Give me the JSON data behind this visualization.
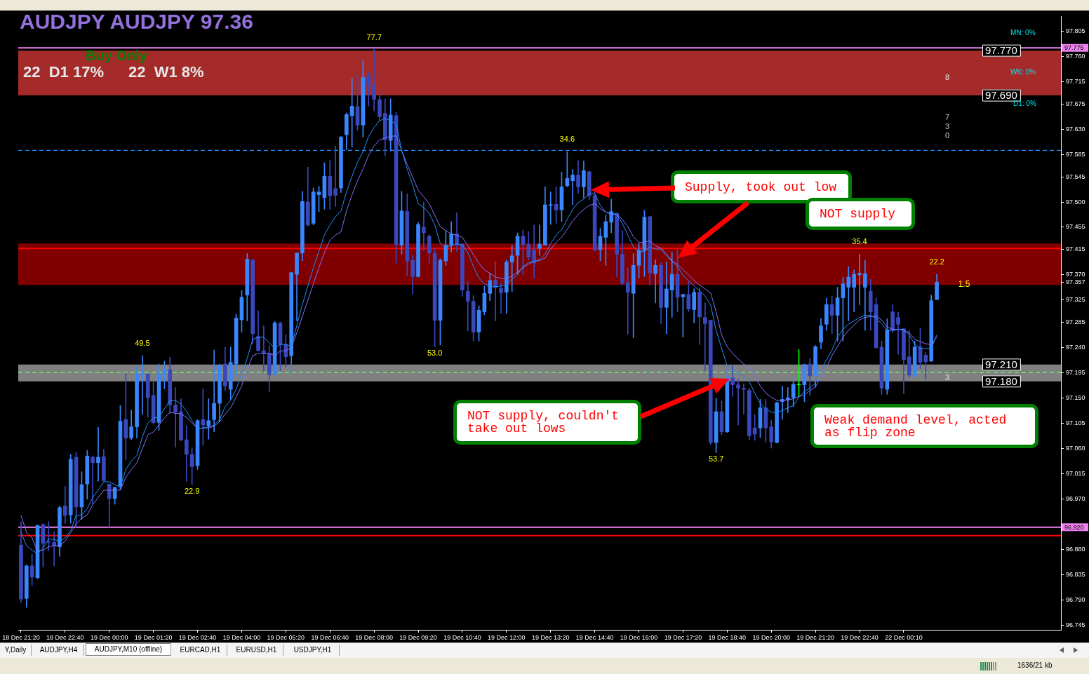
{
  "chart_data": {
    "type": "candlestick",
    "title": "AUDJPY AUDJPY 97.36",
    "subtitle": "Buy Only",
    "categories": [
      "18 Dec 21:20",
      null,
      null,
      null,
      null,
      null,
      null,
      null,
      "18 Dec 22:40",
      null,
      null,
      null,
      null,
      null,
      null,
      null,
      "19 Dec 00:00",
      null,
      null,
      null,
      null,
      null,
      null,
      null,
      "19 Dec 01:20",
      null,
      null,
      null,
      null,
      null,
      null,
      null,
      "19 Dec 02:40",
      null,
      null,
      null,
      null,
      null,
      null,
      null,
      "19 Dec 04:00",
      null,
      null,
      null,
      null,
      null,
      null,
      null,
      "19 Dec 05:20",
      null,
      null,
      null,
      null,
      null,
      null,
      null,
      "19 Dec 06:40",
      null,
      null,
      null,
      null,
      null,
      null,
      null,
      "19 Dec 08:00",
      null,
      null,
      null,
      null,
      null,
      null,
      null,
      "19 Dec 09:20",
      null,
      null,
      null,
      null,
      null,
      null,
      null,
      "19 Dec 10:40",
      null,
      null,
      null,
      null,
      null,
      null,
      null,
      "19 Dec 12:00",
      null,
      null,
      null,
      null,
      null,
      null,
      null,
      "19 Dec 13:20",
      null,
      null,
      null,
      null,
      null,
      null,
      null,
      "19 Dec 14:40",
      null,
      null,
      null,
      null,
      null,
      null,
      null,
      "19 Dec 16:00",
      null,
      null,
      null,
      null,
      null,
      null,
      null,
      "19 Dec 17:20",
      null,
      null,
      null,
      null,
      null,
      null,
      null,
      "19 Dec 18:40",
      null,
      null,
      null,
      null,
      null,
      null,
      null,
      "19 Dec 20:00",
      null,
      null,
      null,
      null,
      null,
      null,
      null,
      "19 Dec 21:20",
      null,
      null,
      null,
      null,
      null,
      null,
      null,
      "19 Dec 22:40",
      null,
      null,
      null,
      null,
      null,
      null,
      null,
      "22 Dec 00:10",
      null,
      null,
      null,
      null,
      null,
      null,
      null,
      null,
      null,
      null,
      null,
      null,
      null,
      null,
      null,
      null,
      null,
      null,
      null,
      null,
      null,
      null,
      null,
      null,
      null,
      null,
      null,
      null
    ],
    "ohlc": [
      [
        96.888,
        96.93,
        96.786,
        96.792
      ],
      [
        96.793,
        96.853,
        96.777,
        96.851
      ],
      [
        96.851,
        96.872,
        96.816,
        96.831
      ],
      [
        96.83,
        96.924,
        96.828,
        96.923
      ],
      [
        96.925,
        96.926,
        96.849,
        96.891
      ],
      [
        96.894,
        96.93,
        96.878,
        96.893
      ],
      [
        96.893,
        96.912,
        96.851,
        96.886
      ],
      [
        96.885,
        96.958,
        96.868,
        96.955
      ],
      [
        96.958,
        96.993,
        96.927,
        96.941
      ],
      [
        96.942,
        97.05,
        96.927,
        97.041
      ],
      [
        97.045,
        97.054,
        96.92,
        96.956
      ],
      [
        96.956,
        97.019,
        96.934,
        96.996
      ],
      [
        96.997,
        97.057,
        96.97,
        97.047
      ],
      [
        97.045,
        97.047,
        96.961,
        97.035
      ],
      [
        97.035,
        97.098,
        97.002,
        97.045
      ],
      [
        97.046,
        97.059,
        97.002,
        97.003
      ],
      [
        96.997,
        96.997,
        96.92,
        96.971
      ],
      [
        96.971,
        96.992,
        96.961,
        96.991
      ],
      [
        96.993,
        97.137,
        96.988,
        97.109
      ],
      [
        97.112,
        97.195,
        97.04,
        97.079
      ],
      [
        97.079,
        97.129,
        97.076,
        97.099
      ],
      [
        97.099,
        97.208,
        97.079,
        97.193
      ],
      [
        97.193,
        97.226,
        97.121,
        97.195
      ],
      [
        97.193,
        97.194,
        97.116,
        97.151
      ],
      [
        97.155,
        97.18,
        97.105,
        97.106
      ],
      [
        97.107,
        97.211,
        97.093,
        97.193
      ],
      [
        97.193,
        97.216,
        97.167,
        97.201
      ],
      [
        97.201,
        97.223,
        97.123,
        97.138
      ],
      [
        97.138,
        97.169,
        97.063,
        97.125
      ],
      [
        97.126,
        97.149,
        97.074,
        97.076
      ],
      [
        97.076,
        97.101,
        97.002,
        97.05
      ],
      [
        97.05,
        97.062,
        96.996,
        97.028
      ],
      [
        97.03,
        97.112,
        97.023,
        97.11
      ],
      [
        97.112,
        97.167,
        97.066,
        97.102
      ],
      [
        97.101,
        97.149,
        97.077,
        97.11
      ],
      [
        97.112,
        97.236,
        97.09,
        97.141
      ],
      [
        97.141,
        97.211,
        97.108,
        97.209
      ],
      [
        97.211,
        97.241,
        97.163,
        97.172
      ],
      [
        97.166,
        97.241,
        97.148,
        97.214
      ],
      [
        97.211,
        97.3,
        97.188,
        97.293
      ],
      [
        97.29,
        97.342,
        97.268,
        97.33
      ],
      [
        97.334,
        97.408,
        97.288,
        97.398
      ],
      [
        97.396,
        97.398,
        97.247,
        97.265
      ],
      [
        97.26,
        97.306,
        97.234,
        97.235
      ],
      [
        97.235,
        97.279,
        97.199,
        97.23
      ],
      [
        97.23,
        97.244,
        97.162,
        97.192
      ],
      [
        97.192,
        97.287,
        97.191,
        97.284
      ],
      [
        97.284,
        97.286,
        97.198,
        97.246
      ],
      [
        97.246,
        97.264,
        97.205,
        97.224
      ],
      [
        97.226,
        97.375,
        97.194,
        97.374
      ],
      [
        97.371,
        97.409,
        97.288,
        97.409
      ],
      [
        97.409,
        97.519,
        97.395,
        97.501
      ],
      [
        97.5,
        97.562,
        97.457,
        97.459
      ],
      [
        97.462,
        97.525,
        97.459,
        97.518
      ],
      [
        97.513,
        97.528,
        97.483,
        97.518
      ],
      [
        97.508,
        97.57,
        97.487,
        97.546
      ],
      [
        97.546,
        97.574,
        97.487,
        97.511
      ],
      [
        97.524,
        97.6,
        97.492,
        97.512
      ],
      [
        97.525,
        97.617,
        97.517,
        97.616
      ],
      [
        97.62,
        97.659,
        97.593,
        97.656
      ],
      [
        97.654,
        97.72,
        97.598,
        97.671
      ],
      [
        97.67,
        97.729,
        97.628,
        97.637
      ],
      [
        97.637,
        97.752,
        97.616,
        97.722
      ],
      [
        97.725,
        97.732,
        97.671,
        97.707
      ],
      [
        97.708,
        97.772,
        97.662,
        97.683
      ],
      [
        97.683,
        97.699,
        97.645,
        97.652
      ],
      [
        97.658,
        97.684,
        97.582,
        97.611
      ],
      [
        97.61,
        97.684,
        97.591,
        97.655
      ],
      [
        97.654,
        97.66,
        97.391,
        97.424
      ],
      [
        97.423,
        97.519,
        97.407,
        97.484
      ],
      [
        97.483,
        97.515,
        97.368,
        97.395
      ],
      [
        97.396,
        97.405,
        97.336,
        97.367
      ],
      [
        97.367,
        97.464,
        97.366,
        97.46
      ],
      [
        97.455,
        97.5,
        97.413,
        97.445
      ],
      [
        97.439,
        97.442,
        97.391,
        97.409
      ],
      [
        97.408,
        97.417,
        97.242,
        97.289
      ],
      [
        97.289,
        97.399,
        97.245,
        97.396
      ],
      [
        97.395,
        97.449,
        97.387,
        97.423
      ],
      [
        97.423,
        97.465,
        97.411,
        97.443
      ],
      [
        97.443,
        97.481,
        97.412,
        97.424
      ],
      [
        97.425,
        97.426,
        97.332,
        97.343
      ],
      [
        97.341,
        97.358,
        97.27,
        97.323
      ],
      [
        97.323,
        97.333,
        97.252,
        97.268
      ],
      [
        97.268,
        97.315,
        97.252,
        97.307
      ],
      [
        97.304,
        97.35,
        97.299,
        97.337
      ],
      [
        97.337,
        97.372,
        97.324,
        97.36
      ],
      [
        97.361,
        97.394,
        97.288,
        97.347
      ],
      [
        97.346,
        97.356,
        97.301,
        97.338
      ],
      [
        97.339,
        97.397,
        97.301,
        97.393
      ],
      [
        97.393,
        97.423,
        97.34,
        97.404
      ],
      [
        97.405,
        97.445,
        97.371,
        97.439
      ],
      [
        97.439,
        97.45,
        97.37,
        97.424
      ],
      [
        97.424,
        97.447,
        97.397,
        97.402
      ],
      [
        97.414,
        97.459,
        97.364,
        97.391
      ],
      [
        97.417,
        97.459,
        97.405,
        97.425
      ],
      [
        97.423,
        97.527,
        97.423,
        97.495
      ],
      [
        97.494,
        97.518,
        97.46,
        97.495
      ],
      [
        97.496,
        97.527,
        97.462,
        97.486
      ],
      [
        97.486,
        97.553,
        97.465,
        97.527
      ],
      [
        97.529,
        97.59,
        97.527,
        97.542
      ],
      [
        97.538,
        97.558,
        97.495,
        97.548
      ],
      [
        97.548,
        97.574,
        97.515,
        97.527
      ],
      [
        97.527,
        97.573,
        97.507,
        97.556
      ],
      [
        97.554,
        97.555,
        97.504,
        97.511
      ],
      [
        97.511,
        97.518,
        97.413,
        97.414
      ],
      [
        97.415,
        97.453,
        97.395,
        97.439
      ],
      [
        97.437,
        97.477,
        97.387,
        97.465
      ],
      [
        97.464,
        97.505,
        97.445,
        97.483
      ],
      [
        97.48,
        97.48,
        97.367,
        97.407
      ],
      [
        97.407,
        97.449,
        97.352,
        97.355
      ],
      [
        97.356,
        97.383,
        97.264,
        97.339
      ],
      [
        97.337,
        97.408,
        97.258,
        97.387
      ],
      [
        97.387,
        97.426,
        97.364,
        97.414
      ],
      [
        97.414,
        97.485,
        97.367,
        97.473
      ],
      [
        97.474,
        97.474,
        97.352,
        97.373
      ],
      [
        97.372,
        97.397,
        97.32,
        97.387
      ],
      [
        97.387,
        97.392,
        97.283,
        97.312
      ],
      [
        97.312,
        97.393,
        97.265,
        97.345
      ],
      [
        97.343,
        97.411,
        97.294,
        97.371
      ],
      [
        97.371,
        97.415,
        97.304,
        97.33
      ],
      [
        97.331,
        97.336,
        97.259,
        97.335
      ],
      [
        97.335,
        97.358,
        97.305,
        97.309
      ],
      [
        97.308,
        97.345,
        97.284,
        97.339
      ],
      [
        97.339,
        97.347,
        97.246,
        97.295
      ],
      [
        97.294,
        97.32,
        97.199,
        97.283
      ],
      [
        97.289,
        97.289,
        97.067,
        97.071
      ],
      [
        97.071,
        97.15,
        97.053,
        97.126
      ],
      [
        97.126,
        97.145,
        97.085,
        97.09
      ],
      [
        97.09,
        97.202,
        97.089,
        97.187
      ],
      [
        97.186,
        97.209,
        97.153,
        97.174
      ],
      [
        97.174,
        97.184,
        97.102,
        97.168
      ],
      [
        97.168,
        97.176,
        97.122,
        97.166
      ],
      [
        97.164,
        97.168,
        97.076,
        97.083
      ],
      [
        97.097,
        97.121,
        97.075,
        97.086
      ],
      [
        97.097,
        97.148,
        97.08,
        97.133
      ],
      [
        97.133,
        97.148,
        97.072,
        97.097
      ],
      [
        97.099,
        97.111,
        97.061,
        97.072
      ],
      [
        97.071,
        97.143,
        97.07,
        97.142
      ],
      [
        97.144,
        97.172,
        97.112,
        97.148
      ],
      [
        97.147,
        97.169,
        97.124,
        97.151
      ],
      [
        97.151,
        97.19,
        97.135,
        97.175
      ],
      [
        97.174,
        97.237,
        97.153,
        97.175
      ],
      [
        97.174,
        97.211,
        97.144,
        97.21
      ],
      [
        97.211,
        97.221,
        97.155,
        97.19
      ],
      [
        97.191,
        97.244,
        97.17,
        97.242
      ],
      [
        97.25,
        97.292,
        97.238,
        97.279
      ],
      [
        97.282,
        97.329,
        97.271,
        97.317
      ],
      [
        97.317,
        97.332,
        97.265,
        97.298
      ],
      [
        97.298,
        97.348,
        97.252,
        97.329
      ],
      [
        97.329,
        97.366,
        97.252,
        97.354
      ],
      [
        97.348,
        97.385,
        97.288,
        97.366
      ],
      [
        97.348,
        97.379,
        97.304,
        97.371
      ],
      [
        97.37,
        97.407,
        97.317,
        97.373
      ],
      [
        97.348,
        97.396,
        97.271,
        97.372
      ],
      [
        97.341,
        97.362,
        97.271,
        97.304
      ],
      [
        97.317,
        97.329,
        97.24,
        97.24
      ],
      [
        97.241,
        97.252,
        97.157,
        97.168
      ],
      [
        97.166,
        97.292,
        97.157,
        97.272
      ],
      [
        97.304,
        97.317,
        97.267,
        97.271
      ],
      [
        97.294,
        97.304,
        97.228,
        97.282
      ],
      [
        97.274,
        97.274,
        97.158,
        97.219
      ],
      [
        97.224,
        97.271,
        97.187,
        97.191
      ],
      [
        97.19,
        97.252,
        97.187,
        97.241
      ],
      [
        97.242,
        97.275,
        97.203,
        97.214
      ],
      [
        97.227,
        97.232,
        97.184,
        97.215
      ],
      [
        97.216,
        97.334,
        97.216,
        97.324
      ],
      [
        97.326,
        97.371,
        97.326,
        97.357
      ],
      null,
      null,
      null,
      null,
      null,
      null,
      null,
      null,
      null,
      null,
      null,
      null,
      null,
      null,
      null,
      null,
      null,
      null,
      null,
      null,
      null,
      null
    ],
    "colors": [
      "#3a48be",
      "#3a86ff",
      "#3a48be",
      "#3a86ff",
      "#3a48be",
      "#3a48be",
      "#3a48be",
      "#3a86ff",
      "#3a48be",
      "#3a86ff",
      "#3a48be",
      "#3a86ff",
      "#3a86ff",
      "#3a48be",
      "#3a86ff",
      "#3a48be",
      "#3a48be",
      "#3a86ff",
      "#3a86ff",
      "#3a48be",
      "#3a86ff",
      "#3a86ff",
      "#3a86ff",
      "#3a48be",
      "#3a48be",
      "#3a86ff",
      "#3a86ff",
      "#3a48be",
      "#3a48be",
      "#3a48be",
      "#3a48be",
      "#3a48be",
      "#3a86ff",
      "#3a48be",
      "#3a86ff",
      "#3a86ff",
      "#3a86ff",
      "#3a48be",
      "#3a86ff",
      "#3a86ff",
      "#3a86ff",
      "#3a86ff",
      "#3a48be",
      "#3a48be",
      "#3a48be",
      "#3a48be",
      "#3a86ff",
      "#3a48be",
      "#3a48be",
      "#3a86ff",
      "#3a86ff",
      "#3a86ff",
      "#3a48be",
      "#3a86ff",
      "#3a86ff",
      "#3a86ff",
      "#3a48be",
      "#3a48be",
      "#3a86ff",
      "#3a86ff",
      "#3a86ff",
      "#3a48be",
      "#3a86ff",
      "#3a48be",
      "#3a48be",
      "#3a48be",
      "#3a48be",
      "#3a86ff",
      "#3a48be",
      "#3a86ff",
      "#3a48be",
      "#3a48be",
      "#3a86ff",
      "#3a48be",
      "#3a48be",
      "#3a48be",
      "#3a86ff",
      "#3a86ff",
      "#3a86ff",
      "#3a48be",
      "#3a48be",
      "#3a48be",
      "#3a48be",
      "#3a86ff",
      "#3a86ff",
      "#3a86ff",
      "#3a48be",
      "#3a48be",
      "#3a86ff",
      "#3a86ff",
      "#3a86ff",
      "#3a48be",
      "#3a48be",
      "#3a48be",
      "#3a86ff",
      "#3a86ff",
      "#3a86ff",
      "#3a48be",
      "#3a86ff",
      "#3a86ff",
      "#3a86ff",
      "#3a48be",
      "#3a86ff",
      "#3a48be",
      "#3a48be",
      "#3a86ff",
      "#3a86ff",
      "#3a86ff",
      "#3a48be",
      "#3a48be",
      "#3a48be",
      "#3a86ff",
      "#3a86ff",
      "#3a86ff",
      "#3a48be",
      "#3a86ff",
      "#3a48be",
      "#3a86ff",
      "#3a86ff",
      "#3a48be",
      "#3a86ff",
      "#3a48be",
      "#3a86ff",
      "#3a48be",
      "#3a48be",
      "#3a48be",
      "#3a86ff",
      "#3a48be",
      "#3a86ff",
      "#3a48be",
      "#3a48be",
      "#3a48be",
      "#3a48be",
      "#3a48be",
      "#3a86ff",
      "#3a48be",
      "#3a48be",
      "#3a86ff",
      "#3a86ff",
      "#3a86ff",
      "#3a86ff",
      "#00ff00",
      "#3a86ff",
      "#3a48be",
      "#3a86ff",
      "#3a86ff",
      "#3a86ff",
      "#3a48be",
      "#3a86ff",
      "#3a86ff",
      "#3a86ff",
      "#3a86ff",
      "#3a86ff",
      "#3a86ff",
      "#3a48be",
      "#3a48be",
      "#3a48be",
      "#3a86ff",
      "#3a48be",
      "#3a48be",
      "#3a48be",
      "#3a48be",
      "#3a86ff",
      "#3a48be",
      "#3a48be",
      "#3a86ff",
      "#3a86ff",
      null,
      null,
      null,
      null,
      null,
      null,
      null,
      null,
      null,
      null,
      null,
      null,
      null,
      null,
      null,
      null,
      null,
      null,
      null,
      null,
      null,
      null
    ],
    "value_labels": [
      null,
      null,
      null,
      null,
      null,
      null,
      null,
      null,
      null,
      null,
      null,
      null,
      null,
      null,
      null,
      null,
      null,
      null,
      null,
      null,
      null,
      null,
      "49.5",
      null,
      null,
      null,
      null,
      null,
      null,
      null,
      null,
      "22.9",
      null,
      null,
      null,
      null,
      null,
      null,
      null,
      null,
      null,
      null,
      null,
      null,
      null,
      null,
      null,
      null,
      null,
      null,
      null,
      null,
      null,
      null,
      null,
      null,
      null,
      null,
      null,
      null,
      null,
      null,
      null,
      null,
      "77.7",
      null,
      null,
      null,
      null,
      null,
      null,
      null,
      null,
      null,
      null,
      "53.0",
      null,
      null,
      null,
      null,
      null,
      null,
      null,
      null,
      null,
      null,
      null,
      null,
      null,
      null,
      null,
      null,
      null,
      null,
      null,
      null,
      null,
      null,
      null,
      "34.6",
      null,
      null,
      null,
      null,
      null,
      null,
      null,
      null,
      null,
      null,
      null,
      null,
      null,
      null,
      null,
      null,
      null,
      null,
      null,
      null,
      null,
      null,
      null,
      null,
      null,
      null,
      "53.7",
      null,
      null,
      null,
      null,
      null,
      null,
      null,
      null,
      null,
      null,
      null,
      null,
      null,
      null,
      null,
      null,
      null,
      null,
      null,
      null,
      null,
      null,
      null,
      null,
      null,
      "35.4",
      null,
      null,
      null,
      null,
      null,
      null,
      null,
      null,
      null,
      null,
      null,
      null,
      null,
      "22.2",
      null,
      null,
      null,
      null,
      null,
      null,
      null,
      null,
      null,
      null,
      null,
      null,
      null,
      null,
      null,
      null,
      null,
      null,
      null,
      null,
      null,
      null
    ],
    "series": [
      {
        "type": "line",
        "color": "#1e90ff",
        "values": [
          96.911,
          96.887,
          96.879,
          96.873,
          96.883,
          96.899,
          96.898,
          96.895,
          96.901,
          96.914,
          96.941,
          96.942,
          96.953,
          96.973,
          96.986,
          97.001,
          97.001,
          96.996,
          96.992,
          97.023,
          97.038,
          97.048,
          97.081,
          97.106,
          97.115,
          97.116,
          97.131,
          97.146,
          97.146,
          97.14,
          97.127,
          97.11,
          97.096,
          97.097,
          97.099,
          97.102,
          97.112,
          97.135,
          97.146,
          97.166,
          97.193,
          97.221,
          97.255,
          97.259,
          97.259,
          97.249,
          97.239,
          97.246,
          97.246,
          97.242,
          97.28,
          97.317,
          97.35,
          97.383,
          97.412,
          97.441,
          97.459,
          97.474,
          97.484,
          97.518,
          97.546,
          97.571,
          97.59,
          97.617,
          97.633,
          97.645,
          97.649,
          97.645,
          97.639,
          97.592,
          97.559,
          97.53,
          97.497,
          97.49,
          97.48,
          97.459,
          97.426,
          97.42,
          97.422,
          97.425,
          97.423,
          97.41,
          97.385,
          97.364,
          97.354,
          97.35,
          97.349,
          97.35,
          97.352,
          97.363,
          97.37,
          97.385,
          97.392,
          97.394,
          97.397,
          97.407,
          97.426,
          97.441,
          97.451,
          97.469,
          97.487,
          97.499,
          97.505,
          97.515,
          97.515,
          97.494,
          97.482,
          97.48,
          97.478,
          97.462,
          97.441,
          97.42,
          97.412,
          97.412,
          97.42,
          97.416,
          97.416,
          97.404,
          97.394,
          97.385,
          97.369,
          97.36,
          97.35,
          97.342,
          97.332,
          97.317,
          97.271,
          97.239,
          97.208,
          97.199,
          97.195,
          97.189,
          97.18,
          97.159,
          97.141,
          97.131,
          97.125,
          97.125,
          97.128,
          97.133,
          97.137,
          97.152,
          97.162,
          97.168,
          97.177,
          97.201,
          97.218,
          97.236,
          97.259,
          97.273,
          97.282,
          97.288,
          97.294,
          97.298,
          97.298,
          97.292,
          97.283,
          97.271,
          97.271,
          97.273,
          97.273,
          97.263,
          97.246,
          97.239,
          97.239,
          97.239,
          97.263,
          null,
          null,
          null,
          null,
          null,
          null,
          null,
          null,
          null,
          null,
          null,
          null,
          null,
          null,
          null,
          null,
          null,
          null,
          null,
          null,
          null,
          null
        ]
      },
      {
        "type": "line",
        "color": "#8470ff",
        "values": [
          96.941,
          96.911,
          96.901,
          96.877,
          96.879,
          96.885,
          96.887,
          96.887,
          96.895,
          96.91,
          96.926,
          96.936,
          96.942,
          96.96,
          96.973,
          96.986,
          96.986,
          96.986,
          96.986,
          97.009,
          97.023,
          97.035,
          97.06,
          97.085,
          97.09,
          97.102,
          97.115,
          97.125,
          97.123,
          97.122,
          97.116,
          97.106,
          97.096,
          97.097,
          97.097,
          97.1,
          97.108,
          97.122,
          97.133,
          97.152,
          97.172,
          97.201,
          97.226,
          97.23,
          97.23,
          97.23,
          97.226,
          97.234,
          97.235,
          97.24,
          97.267,
          97.296,
          97.325,
          97.354,
          97.383,
          97.41,
          97.432,
          97.441,
          97.447,
          97.484,
          97.513,
          97.538,
          97.559,
          97.583,
          97.6,
          97.611,
          97.614,
          97.617,
          97.618,
          97.592,
          97.567,
          97.544,
          97.521,
          97.509,
          97.497,
          97.476,
          97.456,
          97.449,
          97.443,
          97.441,
          97.437,
          97.422,
          97.406,
          97.391,
          97.379,
          97.373,
          97.366,
          97.364,
          97.363,
          97.368,
          97.375,
          97.383,
          97.389,
          97.394,
          97.396,
          97.4,
          97.416,
          97.428,
          97.437,
          97.451,
          97.466,
          97.478,
          97.487,
          97.494,
          97.497,
          97.488,
          97.482,
          97.478,
          97.478,
          97.469,
          97.456,
          97.438,
          97.428,
          97.428,
          97.431,
          97.422,
          97.418,
          97.407,
          97.395,
          97.389,
          97.379,
          97.37,
          97.36,
          97.352,
          97.345,
          97.338,
          97.304,
          97.263,
          97.242,
          97.23,
          97.22,
          97.211,
          97.205,
          97.189,
          97.172,
          97.159,
          97.152,
          97.146,
          97.146,
          97.147,
          97.149,
          97.153,
          97.156,
          97.164,
          97.17,
          97.189,
          97.205,
          97.226,
          97.242,
          97.259,
          97.271,
          97.28,
          97.29,
          97.294,
          97.296,
          97.296,
          97.29,
          97.277,
          97.273,
          97.273,
          97.271,
          97.267,
          97.255,
          97.251,
          97.247,
          97.246,
          97.259,
          null,
          null,
          null,
          null,
          null,
          null,
          null,
          null,
          null,
          null,
          null,
          null,
          null,
          null,
          null,
          null,
          null,
          null,
          null,
          null,
          null,
          null
        ]
      }
    ],
    "ylim": [
      96.737,
      97.831
    ],
    "yticks": [
      97.805,
      {
        "value": 97.76,
        "label": "97.760"
      },
      97.715,
      97.675,
      {
        "value": 97.63,
        "label": "97.630"
      },
      97.585,
      97.545,
      {
        "value": 97.5,
        "label": "97.500"
      },
      97.455,
      97.415,
      {
        "value": 97.37,
        "label": "97.370"
      },
      97.357,
      97.325,
      97.285,
      {
        "value": 97.24,
        "label": "97.240"
      },
      97.195,
      {
        "value": 97.15,
        "label": "97.150"
      },
      97.105,
      {
        "value": 97.06,
        "label": "97.060"
      },
      97.015,
      {
        "value": 96.97,
        "label": "96.970"
      },
      {
        "value": 96.88,
        "label": "96.880"
      },
      96.835,
      {
        "value": 96.79,
        "label": "96.790"
      },
      96.745
    ],
    "bands": [
      {
        "axis": "y",
        "from": 97.69,
        "to": 97.77,
        "label": "8",
        "color": "#a52a2a"
      },
      {
        "axis": "y",
        "from": 97.352,
        "to": 97.426,
        "color": "#800000"
      },
      {
        "axis": "y",
        "from": 97.18,
        "to": 97.21,
        "label": "3",
        "color": "#808080"
      }
    ],
    "ref_lines": [
      {
        "axis": "y",
        "value": 97.775,
        "label": "97.775",
        "color": "#ee82ee"
      },
      {
        "axis": "y",
        "value": 96.92,
        "label": "96.920",
        "color": "#ee82ee"
      },
      {
        "axis": "y",
        "value": 97.417,
        "color": "#ff0000"
      },
      {
        "axis": "y",
        "value": 96.905,
        "color": "#ff0000"
      },
      {
        "axis": "y",
        "value": 97.592,
        "color": "#1e90ff",
        "line_style": "dashed"
      },
      {
        "axis": "y",
        "value": 97.196,
        "color": "#66ff66",
        "line_style": "dashed"
      }
    ],
    "annotations": [
      "22  D1 17%",
      "22  W1 8%",
      "MN: 0%",
      "WK: 0%",
      "D1: 0%",
      "1.5",
      "Supply, took out low",
      "NOT supply",
      "NOT supply, couldn't take out lows",
      "Weak demand level, acted as flip zone",
      "Y,Daily",
      "AUDJPY,H4",
      "AUDJPY,M10 (offline)",
      "EURCAD,H1",
      "EURUSD,H1",
      "USDJPY,H1",
      "1636/21 kb",
      "7\n3\n0",
      {
        "text": "97.770",
        "y": 97.77
      },
      {
        "text": "97.690",
        "y": 97.69
      },
      {
        "text": "97.210",
        "y": 97.21
      },
      {
        "text": "97.180",
        "y": 97.18
      }
    ],
    "marker": "none",
    "grid": false,
    "legend": false
  }
}
